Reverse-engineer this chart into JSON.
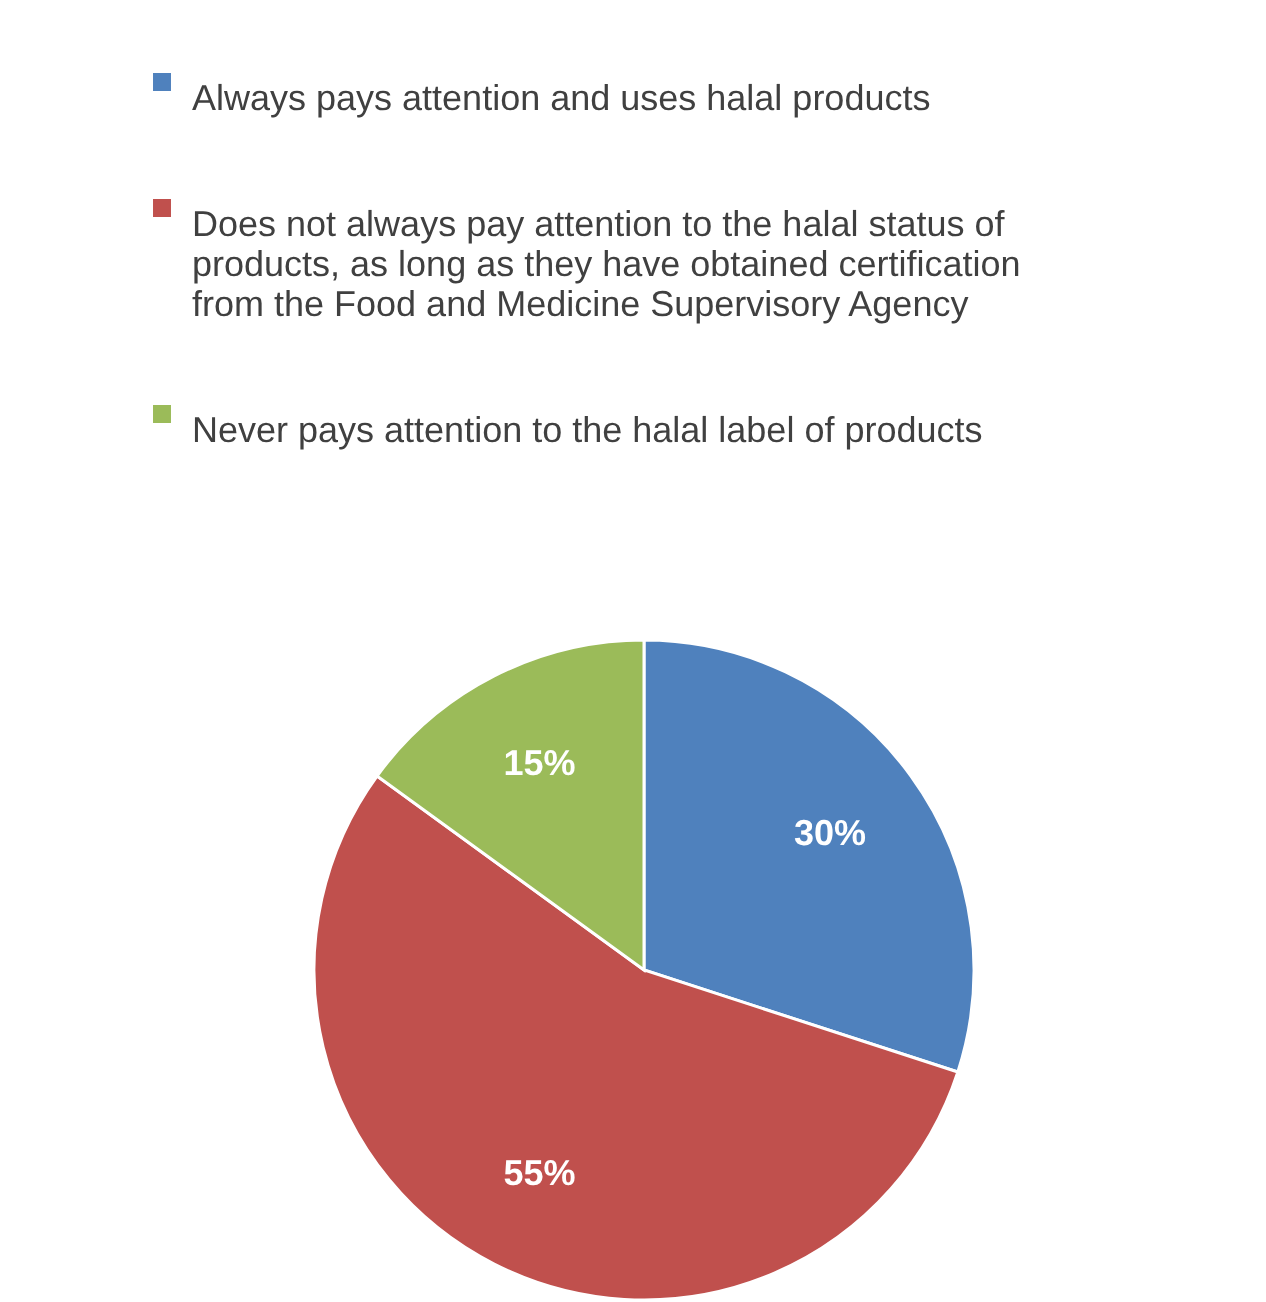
{
  "chart_data": {
    "type": "pie",
    "categories": [
      "Always pays attention and uses halal products",
      "Does not always pay attention to the halal status of products, as long as they have obtained certification from the Food and Medicine Supervisory Agency",
      "Never pays attention to the halal label of products"
    ],
    "values": [
      30,
      55,
      15
    ],
    "colors": [
      "#4f81bd",
      "#c0504d",
      "#9bbb59"
    ],
    "value_labels": [
      "30%",
      "55%",
      "15%"
    ],
    "legend": "top"
  }
}
